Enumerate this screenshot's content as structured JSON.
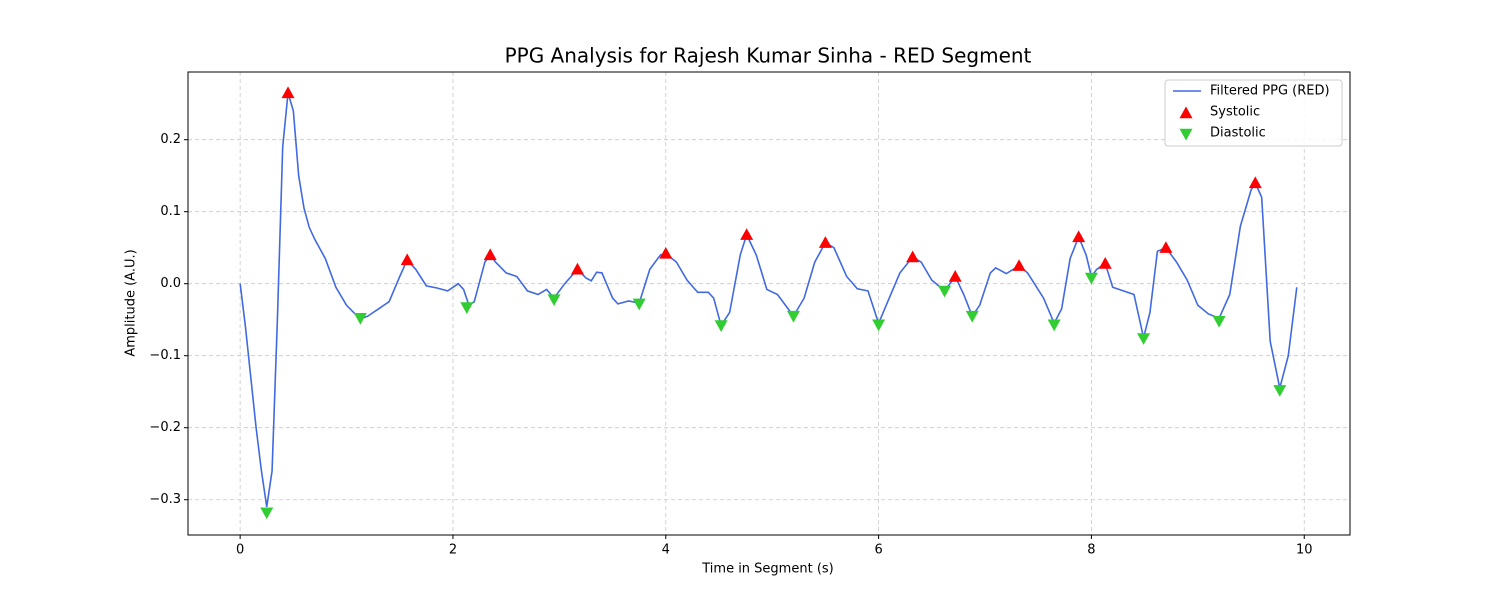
{
  "chart_data": {
    "type": "line",
    "title": "PPG Analysis for Rajesh Kumar Sinha - RED Segment",
    "xlabel": "Time in Segment (s)",
    "ylabel": "Amplitude (A.U.)",
    "xlim": [
      -0.49,
      10.43
    ],
    "ylim": [
      -0.349,
      0.294
    ],
    "xticks": [
      0,
      2,
      4,
      6,
      8,
      10
    ],
    "yticks": [
      {
        "value": -0.3,
        "label": "−0.3"
      },
      {
        "value": -0.2,
        "label": "−0.2"
      },
      {
        "value": -0.1,
        "label": "−0.1"
      },
      {
        "value": 0,
        "label": "0.0"
      },
      0.1,
      0.2
    ],
    "grid": true,
    "legend": "upper right",
    "series": [
      {
        "name": "Filtered PPG (RED)",
        "color": "#4169e1",
        "type": "line",
        "x": [
          0,
          0.05,
          0.1,
          0.15,
          0.2,
          0.25,
          0.3,
          0.35,
          0.4,
          0.45,
          0.5,
          0.55,
          0.6,
          0.65,
          0.7,
          0.8,
          0.9,
          1.0,
          1.1,
          1.15,
          1.2,
          1.3,
          1.4,
          1.5,
          1.57,
          1.65,
          1.75,
          1.85,
          1.95,
          2.0,
          2.05,
          2.1,
          2.15,
          2.2,
          2.3,
          2.35,
          2.4,
          2.5,
          2.6,
          2.7,
          2.8,
          2.88,
          2.95,
          3.05,
          3.17,
          3.25,
          3.3,
          3.35,
          3.4,
          3.5,
          3.55,
          3.65,
          3.75,
          3.85,
          3.95,
          4.0,
          4.1,
          4.2,
          4.3,
          4.4,
          4.45,
          4.52,
          4.6,
          4.7,
          4.76,
          4.85,
          4.95,
          5.05,
          5.15,
          5.2,
          5.3,
          5.4,
          5.5,
          5.58,
          5.7,
          5.8,
          5.9,
          6.0,
          6.1,
          6.2,
          6.32,
          6.4,
          6.5,
          6.62,
          6.72,
          6.8,
          6.88,
          6.95,
          7.05,
          7.1,
          7.2,
          7.32,
          7.4,
          7.55,
          7.65,
          7.72,
          7.8,
          7.88,
          7.95,
          8.0,
          8.05,
          8.13,
          8.2,
          8.3,
          8.4,
          8.49,
          8.55,
          8.62,
          8.7,
          8.8,
          8.9,
          9.0,
          9.1,
          9.2,
          9.3,
          9.4,
          9.5,
          9.54,
          9.6,
          9.68,
          9.77,
          9.85,
          9.93
        ],
        "values": [
          0,
          -0.06,
          -0.13,
          -0.2,
          -0.26,
          -0.31,
          -0.26,
          -0.05,
          0.19,
          0.265,
          0.24,
          0.15,
          0.105,
          0.078,
          0.062,
          0.035,
          -0.005,
          -0.03,
          -0.045,
          -0.048,
          -0.045,
          -0.035,
          -0.025,
          0.01,
          0.033,
          0.02,
          -0.003,
          -0.006,
          -0.01,
          -0.005,
          0,
          -0.008,
          -0.03,
          -0.025,
          0.03,
          0.04,
          0.03,
          0.015,
          0.01,
          -0.01,
          -0.015,
          -0.008,
          -0.02,
          0,
          0.02,
          0.008,
          0.004,
          0.016,
          0.015,
          -0.02,
          -0.028,
          -0.024,
          -0.027,
          0.02,
          0.04,
          0.042,
          0.03,
          0.005,
          -0.012,
          -0.012,
          -0.02,
          -0.058,
          -0.04,
          0.04,
          0.068,
          0.04,
          -0.008,
          -0.015,
          -0.035,
          -0.045,
          -0.02,
          0.03,
          0.057,
          0.05,
          0.01,
          -0.007,
          -0.01,
          -0.055,
          -0.02,
          0.015,
          0.037,
          0.03,
          0.005,
          -0.01,
          0.01,
          -0.015,
          -0.045,
          -0.03,
          0.015,
          0.022,
          0.014,
          0.025,
          0.015,
          -0.02,
          -0.055,
          -0.035,
          0.035,
          0.065,
          0.04,
          0.01,
          0.02,
          0.028,
          -0.005,
          -0.01,
          -0.015,
          -0.075,
          -0.04,
          0.045,
          0.05,
          0.03,
          0.005,
          -0.03,
          -0.042,
          -0.048,
          -0.015,
          0.08,
          0.13,
          0.14,
          0.12,
          -0.08,
          -0.145,
          -0.1,
          -0.005
        ]
      },
      {
        "name": "Systolic",
        "color": "#ff0000",
        "type": "scatter",
        "marker": "triangle-up",
        "x": [
          0.45,
          1.57,
          2.35,
          3.17,
          4.0,
          4.76,
          5.5,
          6.32,
          6.72,
          7.32,
          7.88,
          8.13,
          8.7,
          9.54
        ],
        "values": [
          0.265,
          0.033,
          0.04,
          0.02,
          0.042,
          0.068,
          0.057,
          0.037,
          0.01,
          0.025,
          0.065,
          0.028,
          0.05,
          0.14
        ]
      },
      {
        "name": "Diastolic",
        "color": "#32cd32",
        "type": "scatter",
        "marker": "triangle-down",
        "x": [
          0.25,
          1.13,
          2.13,
          2.95,
          3.75,
          4.52,
          5.2,
          6.0,
          6.62,
          6.88,
          7.65,
          8.0,
          8.49,
          9.2,
          9.77
        ],
        "values": [
          -0.318,
          -0.048,
          -0.033,
          -0.022,
          -0.028,
          -0.058,
          -0.045,
          -0.057,
          -0.01,
          -0.045,
          -0.057,
          0.008,
          -0.076,
          -0.052,
          -0.148
        ]
      }
    ]
  }
}
